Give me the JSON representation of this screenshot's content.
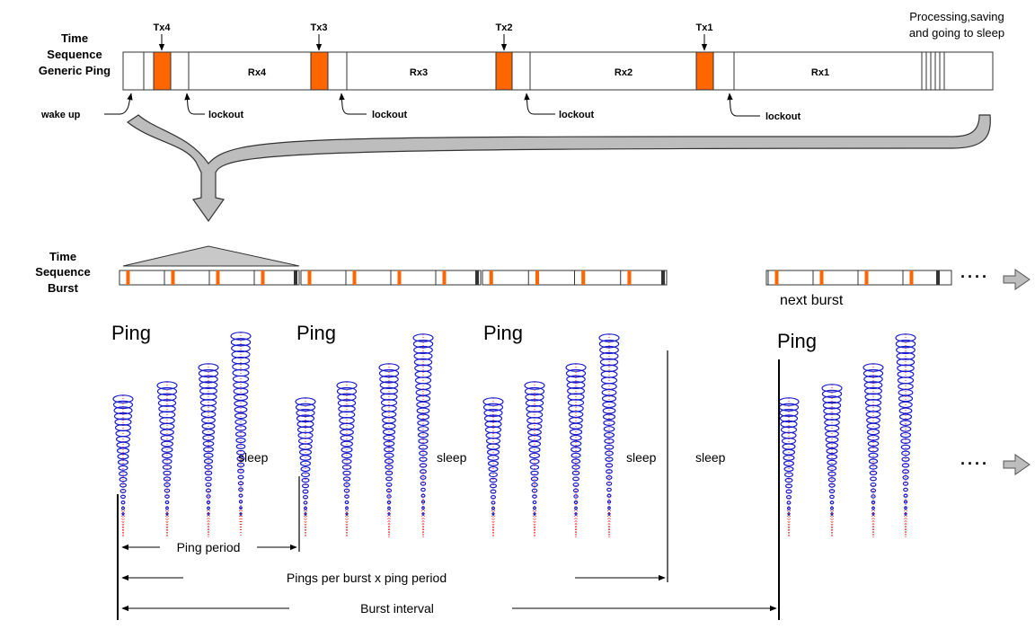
{
  "generic_ping": {
    "title_line1": "Time",
    "title_line2": "Sequence",
    "title_line3": "Generic Ping",
    "transmits": [
      "Tx4",
      "Tx3",
      "Tx2",
      "Tx1"
    ],
    "receives": [
      "Rx4",
      "Rx3",
      "Rx2",
      "Rx1"
    ],
    "wake_label": "wake up",
    "lockout_label": "lockout",
    "end_label_line1": "Processing,saving",
    "end_label_line2": "and going to sleep"
  },
  "burst": {
    "title_line1": "Time",
    "title_line2": "Sequence",
    "title_line3": "Burst",
    "next_burst_label": "next burst",
    "ellipsis": "····"
  },
  "beams": {
    "ping_label": "Ping",
    "sleep_label": "sleep"
  },
  "measurements": {
    "ping_period": "Ping period",
    "pings_per_burst": "Pings per burst x ping period",
    "burst_interval": "Burst interval"
  },
  "colors": {
    "tx": "#ff6600",
    "beam_ring": "#1a1acc",
    "beam_center": "#ff2020",
    "arrow_fill": "#bdbdbd",
    "line": "#000000"
  }
}
